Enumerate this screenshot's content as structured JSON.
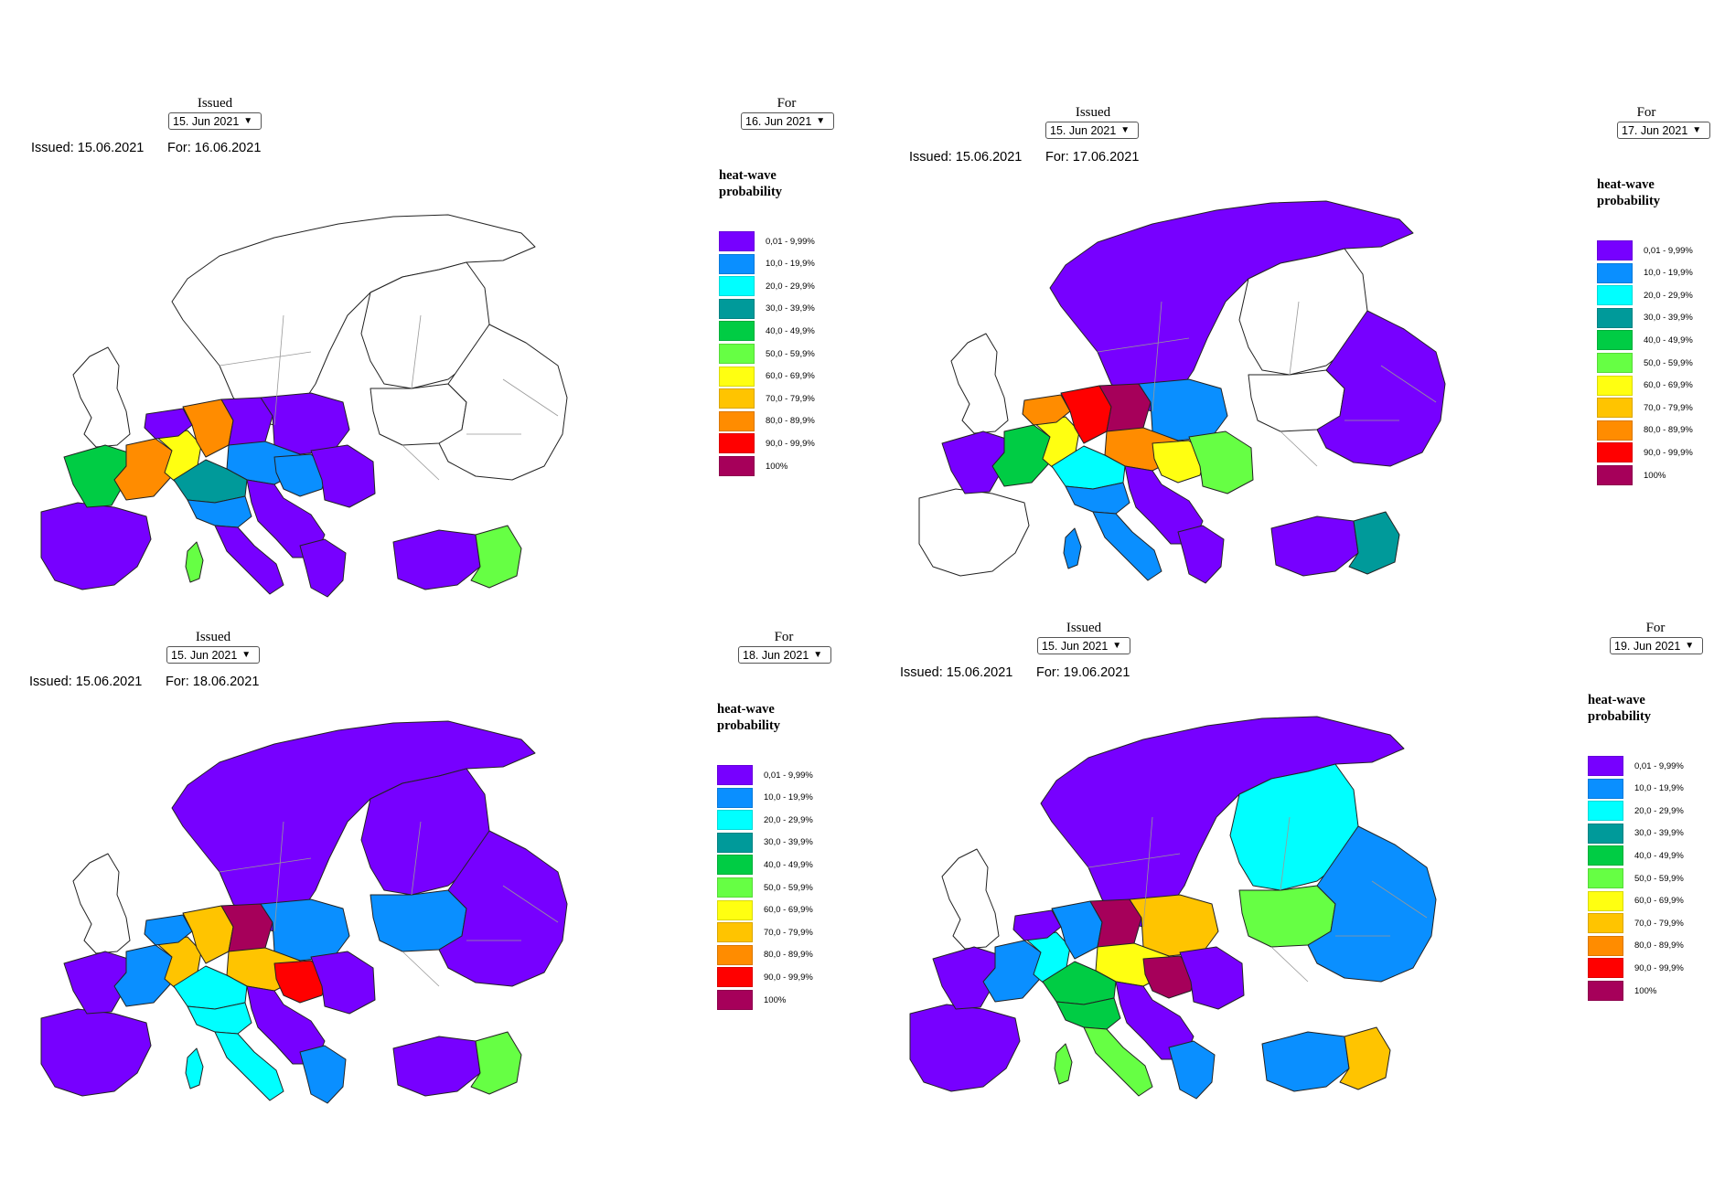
{
  "legend": {
    "title_line1": "heat-wave",
    "title_line2": "probability",
    "items": [
      {
        "label": "0,01 - 9,99%",
        "color": "#7700ff"
      },
      {
        "label": "10,0 - 19,9%",
        "color": "#0a8fff"
      },
      {
        "label": "20,0 - 29,9%",
        "color": "#00ffff"
      },
      {
        "label": "30,0 - 39,9%",
        "color": "#009a9a"
      },
      {
        "label": "40,0 - 49,9%",
        "color": "#00cc44"
      },
      {
        "label": "50,0 - 59,9%",
        "color": "#66ff44"
      },
      {
        "label": "60,0 - 69,9%",
        "color": "#ffff11"
      },
      {
        "label": "70,0 - 79,9%",
        "color": "#ffc400"
      },
      {
        "label": "80,0 - 89,9%",
        "color": "#ff8c00"
      },
      {
        "label": "90,0 - 99,9%",
        "color": "#ff0000"
      },
      {
        "label": "100%",
        "color": "#a6005a"
      }
    ]
  },
  "panels": [
    {
      "issued_label": "Issued",
      "issued_select": "15. Jun 2021",
      "for_label": "For",
      "for_select": "16. Jun 2021",
      "issued_text": "Issued: 15.06.2021",
      "for_text": "For: 16.06.2021"
    },
    {
      "issued_label": "Issued",
      "issued_select": "15. Jun 2021",
      "for_label": "For",
      "for_select": "17. Jun 2021",
      "issued_text": "Issued: 15.06.2021",
      "for_text": "For: 17.06.2021"
    },
    {
      "issued_label": "Issued",
      "issued_select": "15. Jun 2021",
      "for_label": "For",
      "for_select": "18. Jun 2021",
      "issued_text": "Issued: 15.06.2021",
      "for_text": "For: 18.06.2021"
    },
    {
      "issued_label": "Issued",
      "issued_select": "15. Jun 2021",
      "for_label": "For",
      "for_select": "19. Jun 2021",
      "issued_text": "Issued: 15.06.2021",
      "for_text": "For: 19.06.2021"
    }
  ],
  "maps": [
    {
      "regions": {
        "scand": "none",
        "finland": "none",
        "baltic": "none",
        "eastEU": "none",
        "uk": "none",
        "iberia": "purple",
        "france_w": "green",
        "france_c": "orange",
        "france_ne": "yellow",
        "benelux": "purple",
        "germany_w": "orange",
        "germany_e": "purple",
        "poland": "purple",
        "czech": "blue",
        "alps": "teal",
        "italy_n": "blue",
        "italy_s": "purple",
        "balkans": "purple",
        "hungary": "blue",
        "romania": "purple",
        "greece": "purple",
        "turkey_w": "purple",
        "turkey_e": "lgreen",
        "corsica": "lgreen"
      }
    },
    {
      "regions": {
        "scand": "purple",
        "finland": "none",
        "baltic": "none",
        "eastEU": "purple",
        "uk": "none",
        "iberia": "none",
        "france_w": "purple",
        "france_c": "green",
        "france_ne": "yellow",
        "benelux": "orange",
        "germany_w": "red",
        "germany_e": "maroon",
        "poland": "blue",
        "czech": "orange",
        "alps": "cyan",
        "italy_n": "blue",
        "italy_s": "blue",
        "balkans": "purple",
        "hungary": "yellow",
        "romania": "lgreen",
        "greece": "purple",
        "turkey_w": "purple",
        "turkey_e": "teal",
        "corsica": "blue"
      }
    },
    {
      "regions": {
        "scand": "purple",
        "finland": "purple",
        "baltic": "blue",
        "eastEU": "purple",
        "uk": "none",
        "iberia": "purple",
        "france_w": "purple",
        "france_c": "blue",
        "france_ne": "amber",
        "benelux": "blue",
        "germany_w": "amber",
        "germany_e": "maroon",
        "poland": "blue",
        "czech": "amber",
        "alps": "cyan",
        "italy_n": "cyan",
        "italy_s": "cyan",
        "balkans": "purple",
        "hungary": "red",
        "romania": "purple",
        "greece": "blue",
        "turkey_w": "purple",
        "turkey_e": "lgreen",
        "corsica": "cyan"
      }
    },
    {
      "regions": {
        "scand": "purple",
        "finland": "cyan",
        "baltic": "lgreen",
        "eastEU": "blue",
        "uk": "none",
        "iberia": "purple",
        "france_w": "purple",
        "france_c": "blue",
        "france_ne": "cyan",
        "benelux": "purple",
        "germany_w": "blue",
        "germany_e": "maroon",
        "poland": "amber",
        "czech": "yellow",
        "alps": "green",
        "italy_n": "green",
        "italy_s": "lgreen",
        "balkans": "purple",
        "hungary": "maroon",
        "romania": "purple",
        "greece": "blue",
        "turkey_w": "blue",
        "turkey_e": "amber",
        "corsica": "lgreen"
      }
    }
  ]
}
